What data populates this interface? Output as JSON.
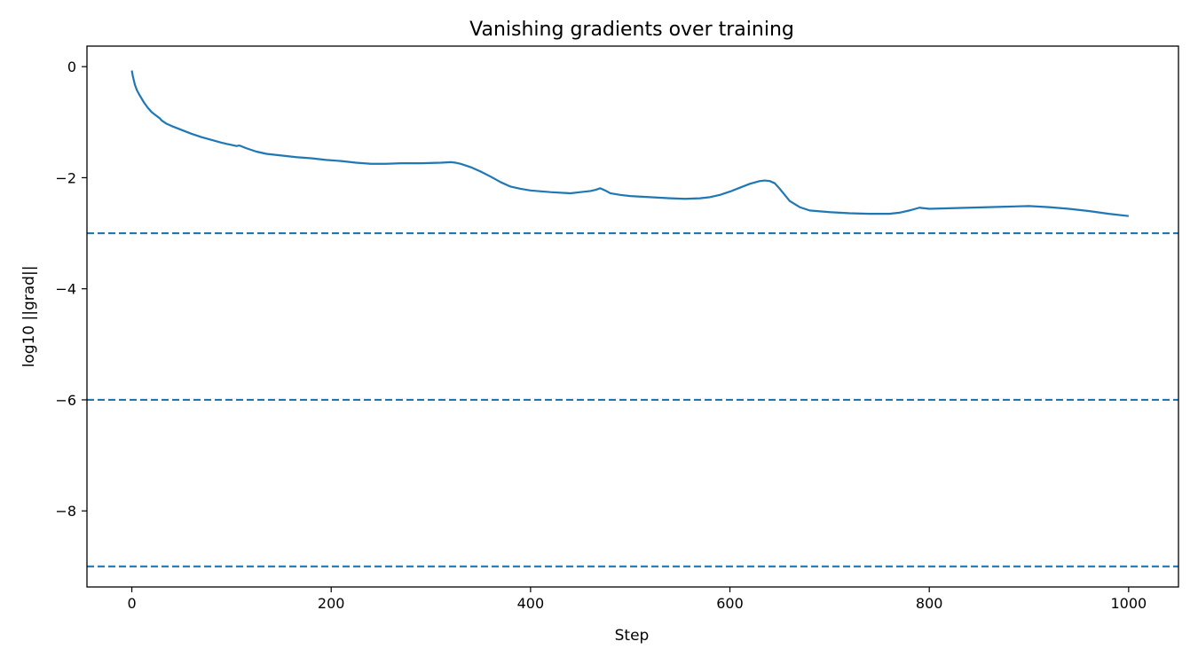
{
  "chart_data": {
    "type": "line",
    "title": "Vanishing gradients over training",
    "xlabel": "Step",
    "ylabel": "log10 ||grad||",
    "xlim": [
      -45,
      1050
    ],
    "ylim": [
      -9.37,
      0.37
    ],
    "x_ticks": [
      0,
      200,
      400,
      600,
      800,
      1000
    ],
    "y_ticks": [
      0,
      -2,
      -4,
      -6,
      -8
    ],
    "x_tick_labels": [
      "0",
      "200",
      "400",
      "600",
      "800",
      "1000"
    ],
    "y_tick_labels": [
      "0",
      "−2",
      "−4",
      "−6",
      "−8"
    ],
    "grid": false,
    "colors": {
      "series": "#1f77b4",
      "reference_lines": "#1f77b4",
      "axes": "#000000"
    },
    "reference_lines": [
      {
        "y": -3,
        "style": "dashed"
      },
      {
        "y": -6,
        "style": "dashed"
      },
      {
        "y": -9,
        "style": "dashed"
      }
    ],
    "series": [
      {
        "x": [
          0,
          1,
          3,
          5,
          8,
          12,
          16,
          20,
          25,
          28,
          30,
          35,
          40,
          50,
          60,
          70,
          80,
          90,
          100,
          105,
          108,
          115,
          125,
          135,
          150,
          165,
          180,
          195,
          210,
          225,
          240,
          255,
          270,
          290,
          310,
          320,
          325,
          330,
          340,
          350,
          360,
          370,
          380,
          390,
          400,
          420,
          440,
          450,
          460,
          465,
          470,
          475,
          480,
          490,
          500,
          520,
          540,
          555,
          570,
          580,
          590,
          600,
          610,
          620,
          630,
          635,
          640,
          645,
          650,
          660,
          670,
          680,
          700,
          720,
          740,
          760,
          770,
          780,
          790,
          800,
          820,
          840,
          860,
          880,
          900,
          920,
          940,
          960,
          980,
          1000
        ],
        "y": [
          -0.07,
          -0.17,
          -0.32,
          -0.42,
          -0.52,
          -0.64,
          -0.74,
          -0.82,
          -0.89,
          -0.93,
          -0.97,
          -1.03,
          -1.07,
          -1.14,
          -1.21,
          -1.27,
          -1.32,
          -1.37,
          -1.41,
          -1.43,
          -1.42,
          -1.47,
          -1.53,
          -1.57,
          -1.6,
          -1.63,
          -1.65,
          -1.68,
          -1.7,
          -1.73,
          -1.75,
          -1.75,
          -1.74,
          -1.74,
          -1.73,
          -1.72,
          -1.73,
          -1.75,
          -1.81,
          -1.89,
          -1.98,
          -2.08,
          -2.16,
          -2.2,
          -2.23,
          -2.26,
          -2.28,
          -2.26,
          -2.24,
          -2.22,
          -2.19,
          -2.23,
          -2.28,
          -2.31,
          -2.33,
          -2.35,
          -2.37,
          -2.38,
          -2.37,
          -2.35,
          -2.31,
          -2.25,
          -2.18,
          -2.11,
          -2.06,
          -2.05,
          -2.06,
          -2.1,
          -2.2,
          -2.42,
          -2.53,
          -2.59,
          -2.62,
          -2.64,
          -2.65,
          -2.65,
          -2.63,
          -2.59,
          -2.54,
          -2.56,
          -2.55,
          -2.54,
          -2.53,
          -2.52,
          -2.51,
          -2.53,
          -2.56,
          -2.6,
          -2.65,
          -2.69
        ]
      }
    ]
  }
}
